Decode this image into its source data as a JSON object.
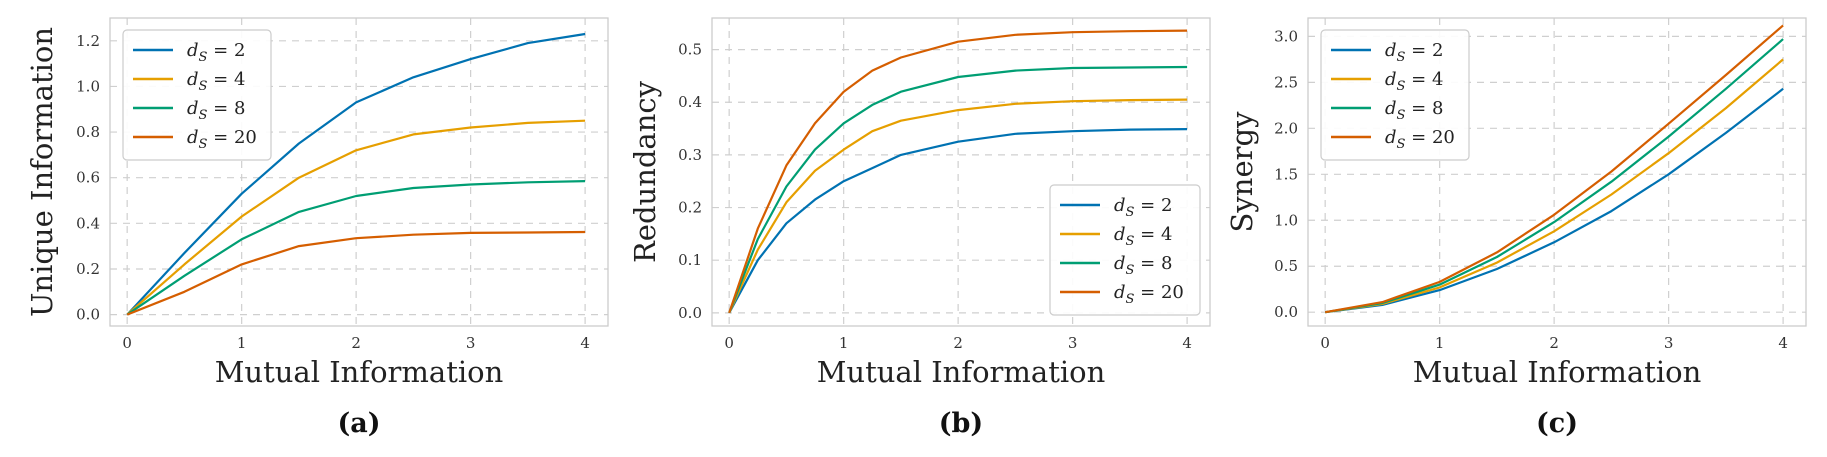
{
  "chart_data": [
    {
      "type": "line",
      "panel_label": "(a)",
      "xlabel": "Mutual Information",
      "ylabel": "Unique Information",
      "xlim": [
        -0.15,
        4.2
      ],
      "ylim": [
        -0.05,
        1.3
      ],
      "xticks": [
        "0",
        "1",
        "2",
        "3",
        "4"
      ],
      "yticks": [
        "0.0",
        "0.2",
        "0.4",
        "0.6",
        "0.8",
        "1.0",
        "1.2"
      ],
      "grid": true,
      "legend_position": "top-left",
      "x": [
        0,
        0.5,
        1,
        1.5,
        2,
        2.5,
        3,
        3.5,
        4
      ],
      "series": [
        {
          "name": "d_S = 2",
          "label_main": "d",
          "label_sub": "S",
          "label_rest": " = 2",
          "color": "#0072b2",
          "values": [
            0,
            0.27,
            0.53,
            0.75,
            0.93,
            1.04,
            1.12,
            1.19,
            1.23
          ]
        },
        {
          "name": "d_S = 4",
          "label_main": "d",
          "label_sub": "S",
          "label_rest": " = 4",
          "color": "#e69f00",
          "values": [
            0,
            0.22,
            0.43,
            0.6,
            0.72,
            0.79,
            0.82,
            0.84,
            0.85
          ]
        },
        {
          "name": "d_S = 8",
          "label_main": "d",
          "label_sub": "S",
          "label_rest": " = 8",
          "color": "#009e73",
          "values": [
            0,
            0.17,
            0.33,
            0.45,
            0.52,
            0.555,
            0.57,
            0.58,
            0.585
          ]
        },
        {
          "name": "d_S = 20",
          "label_main": "d",
          "label_sub": "S",
          "label_rest": " = 20",
          "color": "#d55e00",
          "values": [
            0,
            0.1,
            0.22,
            0.3,
            0.335,
            0.35,
            0.358,
            0.36,
            0.362
          ]
        }
      ]
    },
    {
      "type": "line",
      "panel_label": "(b)",
      "xlabel": "Mutual Information",
      "ylabel": "Redundancy",
      "xlim": [
        -0.15,
        4.2
      ],
      "ylim": [
        -0.025,
        0.56
      ],
      "xticks": [
        "0",
        "1",
        "2",
        "3",
        "4"
      ],
      "yticks": [
        "0.0",
        "0.1",
        "0.2",
        "0.3",
        "0.4",
        "0.5"
      ],
      "grid": true,
      "legend_position": "bottom-right",
      "x": [
        0,
        0.25,
        0.5,
        0.75,
        1,
        1.25,
        1.5,
        2,
        2.5,
        3,
        3.5,
        4
      ],
      "series": [
        {
          "name": "d_S = 2",
          "label_main": "d",
          "label_sub": "S",
          "label_rest": " = 2",
          "color": "#0072b2",
          "values": [
            0,
            0.1,
            0.17,
            0.215,
            0.25,
            0.275,
            0.3,
            0.325,
            0.34,
            0.345,
            0.348,
            0.349
          ]
        },
        {
          "name": "d_S = 4",
          "label_main": "d",
          "label_sub": "S",
          "label_rest": " = 4",
          "color": "#e69f00",
          "values": [
            0,
            0.12,
            0.21,
            0.27,
            0.31,
            0.345,
            0.365,
            0.385,
            0.397,
            0.402,
            0.404,
            0.405
          ]
        },
        {
          "name": "d_S = 8",
          "label_main": "d",
          "label_sub": "S",
          "label_rest": " = 8",
          "color": "#009e73",
          "values": [
            0,
            0.14,
            0.24,
            0.31,
            0.36,
            0.395,
            0.42,
            0.448,
            0.46,
            0.465,
            0.466,
            0.467
          ]
        },
        {
          "name": "d_S = 20",
          "label_main": "d",
          "label_sub": "S",
          "label_rest": " = 20",
          "color": "#d55e00",
          "values": [
            0,
            0.16,
            0.28,
            0.36,
            0.42,
            0.46,
            0.485,
            0.515,
            0.528,
            0.533,
            0.535,
            0.536
          ]
        }
      ]
    },
    {
      "type": "line",
      "panel_label": "(c)",
      "xlabel": "Mutual Information",
      "ylabel": "Synergy",
      "xlim": [
        -0.15,
        4.2
      ],
      "ylim": [
        -0.15,
        3.2
      ],
      "xticks": [
        "0",
        "1",
        "2",
        "3",
        "4"
      ],
      "yticks": [
        "0.0",
        "0.5",
        "1.0",
        "1.5",
        "2.0",
        "2.5",
        "3.0"
      ],
      "grid": true,
      "legend_position": "top-left",
      "x": [
        0,
        0.5,
        1,
        1.5,
        2,
        2.5,
        3,
        3.5,
        4
      ],
      "series": [
        {
          "name": "d_S = 2",
          "label_main": "d",
          "label_sub": "S",
          "label_rest": " = 2",
          "color": "#0072b2",
          "values": [
            0,
            0.08,
            0.24,
            0.47,
            0.76,
            1.1,
            1.5,
            1.95,
            2.43
          ]
        },
        {
          "name": "d_S = 4",
          "label_main": "d",
          "label_sub": "S",
          "label_rest": " = 4",
          "color": "#e69f00",
          "values": [
            0,
            0.09,
            0.27,
            0.54,
            0.88,
            1.28,
            1.73,
            2.22,
            2.75
          ]
        },
        {
          "name": "d_S = 8",
          "label_main": "d",
          "label_sub": "S",
          "label_rest": " = 8",
          "color": "#009e73",
          "values": [
            0,
            0.1,
            0.3,
            0.6,
            0.98,
            1.42,
            1.91,
            2.43,
            2.97
          ]
        },
        {
          "name": "d_S = 20",
          "label_main": "d",
          "label_sub": "S",
          "label_rest": " = 20",
          "color": "#d55e00",
          "values": [
            0,
            0.11,
            0.33,
            0.65,
            1.06,
            1.53,
            2.05,
            2.58,
            3.12
          ]
        }
      ]
    }
  ]
}
